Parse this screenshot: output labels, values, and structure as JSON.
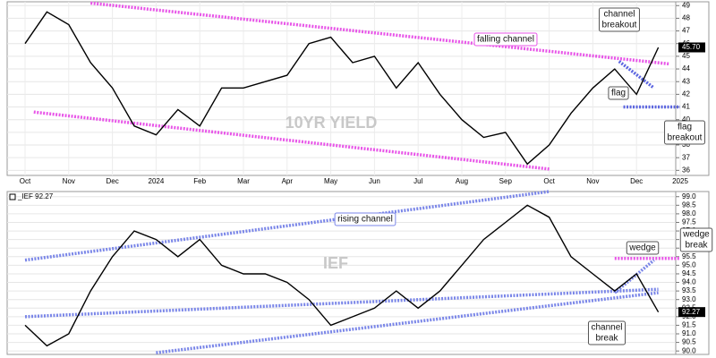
{
  "chart_data": [
    {
      "type": "line",
      "watermark": "10YR YIELD",
      "color": "#000000",
      "categories": [
        "Oct",
        null,
        "Nov",
        null,
        "Dec",
        null,
        "2024",
        null,
        "Feb",
        null,
        "Mar",
        null,
        "Apr",
        null,
        "May",
        null,
        "Jun",
        null,
        "Jul",
        null,
        "Aug",
        null,
        "Sep",
        null,
        "Oct",
        null,
        "Nov",
        null,
        "Dec",
        null,
        "2025"
      ],
      "values": [
        46,
        48.5,
        47.5,
        44.5,
        42.5,
        39.5,
        38.8,
        40.8,
        39.5,
        42.5,
        42.5,
        43,
        43.5,
        46,
        46.5,
        44.5,
        45,
        42.5,
        44.5,
        42,
        40,
        38.6,
        39,
        36.5,
        38,
        40.5,
        42.5,
        44,
        42,
        45.7,
        null
      ],
      "last_value": {
        "value": 45.7,
        "label": "45.70"
      },
      "ylim": [
        35.6,
        49.3
      ],
      "yticks": [
        36,
        37,
        38,
        39,
        40,
        41,
        42,
        43,
        44,
        45,
        46,
        47,
        48,
        49
      ],
      "grid": true,
      "trendlines": [
        {
          "color": "#e855e8",
          "x": [
            3,
            29.5
          ],
          "values": [
            49.2,
            44.4
          ]
        },
        {
          "color": "#e855e8",
          "x": [
            0.4,
            24
          ],
          "values": [
            40.6,
            36.1
          ]
        },
        {
          "color": "#5a64e0",
          "x": [
            27.4,
            30
          ],
          "values": [
            41,
            41
          ]
        },
        {
          "color": "#5a64e0",
          "x": [
            27.2,
            28.8
          ],
          "values": [
            44.6,
            42.5
          ]
        }
      ],
      "annotations": [
        "falling channel",
        [
          "channel",
          "breakout"
        ],
        "flag",
        [
          "flag",
          "breakout"
        ]
      ]
    },
    {
      "type": "line",
      "watermark": "IEF",
      "header": "_IEF 92.27",
      "color": "#000000",
      "values": [
        91.5,
        90.3,
        91,
        93.5,
        95.5,
        97,
        96.5,
        95.5,
        96.5,
        95,
        94.5,
        94.5,
        94,
        93,
        91.5,
        92,
        92.5,
        93.5,
        92.5,
        93.5,
        95,
        96.5,
        97.5,
        98.5,
        97.8,
        95.5,
        94.5,
        93.5,
        94.5,
        92.27,
        null
      ],
      "last_value": {
        "value": 92.27,
        "label": "92.27"
      },
      "ylim": [
        89.8,
        99.3
      ],
      "yticks": [
        {
          "value": 90,
          "label": "90.0"
        },
        90.5,
        {
          "value": 91,
          "label": "91.0"
        },
        91.5,
        {
          "value": 92,
          "label": "92.0"
        },
        92.5,
        {
          "value": 93,
          "label": "93.0"
        },
        93.5,
        {
          "value": 94,
          "label": "94.0"
        },
        94.5,
        {
          "value": 95,
          "label": "95.0"
        },
        95.5,
        {
          "value": 96,
          "label": "96.0"
        },
        96.5,
        {
          "value": 97,
          "label": "97.0"
        },
        97.5,
        {
          "value": 98,
          "label": "98.0"
        },
        98.5,
        {
          "value": 99,
          "label": "99.0"
        }
      ],
      "grid": true,
      "trendlines": [
        {
          "color": "#7a86e8",
          "x": [
            0,
            24
          ],
          "values": [
            95.3,
            99.3
          ]
        },
        {
          "color": "#7a86e8",
          "x": [
            0,
            29
          ],
          "values": [
            92,
            93.6
          ]
        },
        {
          "color": "#7a86e8",
          "x": [
            6,
            29
          ],
          "values": [
            89.9,
            93.4
          ]
        },
        {
          "color": "#e855e8",
          "x": [
            27,
            30
          ],
          "values": [
            95.4,
            95.4
          ]
        },
        {
          "color": "#7a86e8",
          "x": [
            27,
            28.8
          ],
          "values": [
            93.4,
            95.3
          ]
        }
      ],
      "annotations": [
        "rising channel",
        "wedge",
        [
          "wedge",
          "break"
        ],
        [
          "channel",
          "break"
        ]
      ]
    }
  ]
}
